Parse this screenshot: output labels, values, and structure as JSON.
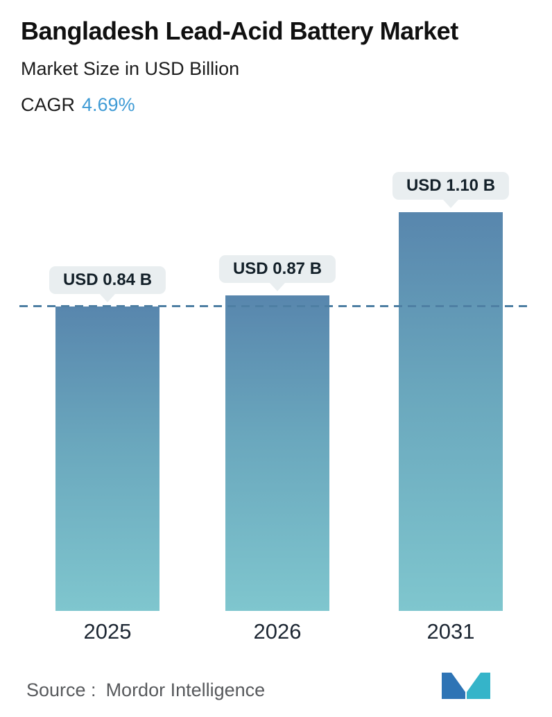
{
  "header": {
    "title": "Bangladesh Lead-Acid Battery Market",
    "subtitle": "Market Size in USD Billion",
    "cagr_label": "CAGR",
    "cagr_value": "4.69%"
  },
  "chart_data": {
    "type": "bar",
    "title": "Bangladesh Lead-Acid Battery Market",
    "subtitle": "Market Size in USD Billion",
    "cagr": "4.69%",
    "categories": [
      "2025",
      "2026",
      "2031"
    ],
    "values": [
      0.84,
      0.87,
      1.1
    ],
    "value_labels": [
      "USD 0.84 B",
      "USD 0.87 B",
      "USD 1.10 B"
    ],
    "unit": "USD Billion",
    "ylim": [
      0,
      1.25
    ],
    "grid": false,
    "legend": "none",
    "reference_line": {
      "value": 0.84,
      "style": "dashed",
      "color": "#4e7fa3"
    },
    "bar_gradient_top": "#5886ad",
    "bar_gradient_bottom": "#7fc6ce"
  },
  "footer": {
    "source_label": "Source :",
    "source_value": "Mordor Intelligence",
    "logo_icon": "mordor-intelligence-logo",
    "logo_color_left": "#2e74b5",
    "logo_color_right": "#35b4c9"
  },
  "colors": {
    "accent_blue": "#3f9bd5",
    "badge_bg": "#e9eef0",
    "text_dark": "#132029"
  }
}
